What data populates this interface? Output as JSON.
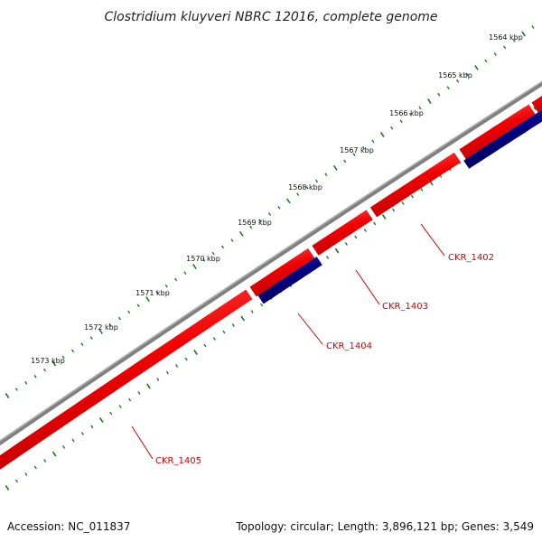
{
  "title": "Clostridium kluyveri NBRC 12016, complete genome",
  "ruler": {
    "labels": [
      "1564 kbp",
      "1565 kbp",
      "1566 kbp",
      "1567 kbp",
      "1568 kbp",
      "1569 kbp",
      "1570 kbp",
      "1571 kbp",
      "1572 kbp",
      "1573 kbp"
    ],
    "tick_color": "#1f7a1f"
  },
  "genes": [
    {
      "name": "CKR_1402",
      "strand": "forward",
      "color": "#ff0000"
    },
    {
      "name": "CKR_1403",
      "strand": "forward",
      "color": "#ff0000"
    },
    {
      "name": "CKR_1404",
      "strand": "reverse",
      "color": "#000080"
    },
    {
      "name": "CKR_1405",
      "strand": "forward",
      "color": "#ff0000"
    }
  ],
  "backbone_color": "#808080",
  "label_color": "#cc0000",
  "footer": {
    "accession": "Accession: NC_011837",
    "summary": "Topology: circular; Length: 3,896,121 bp; Genes: 3,549"
  }
}
